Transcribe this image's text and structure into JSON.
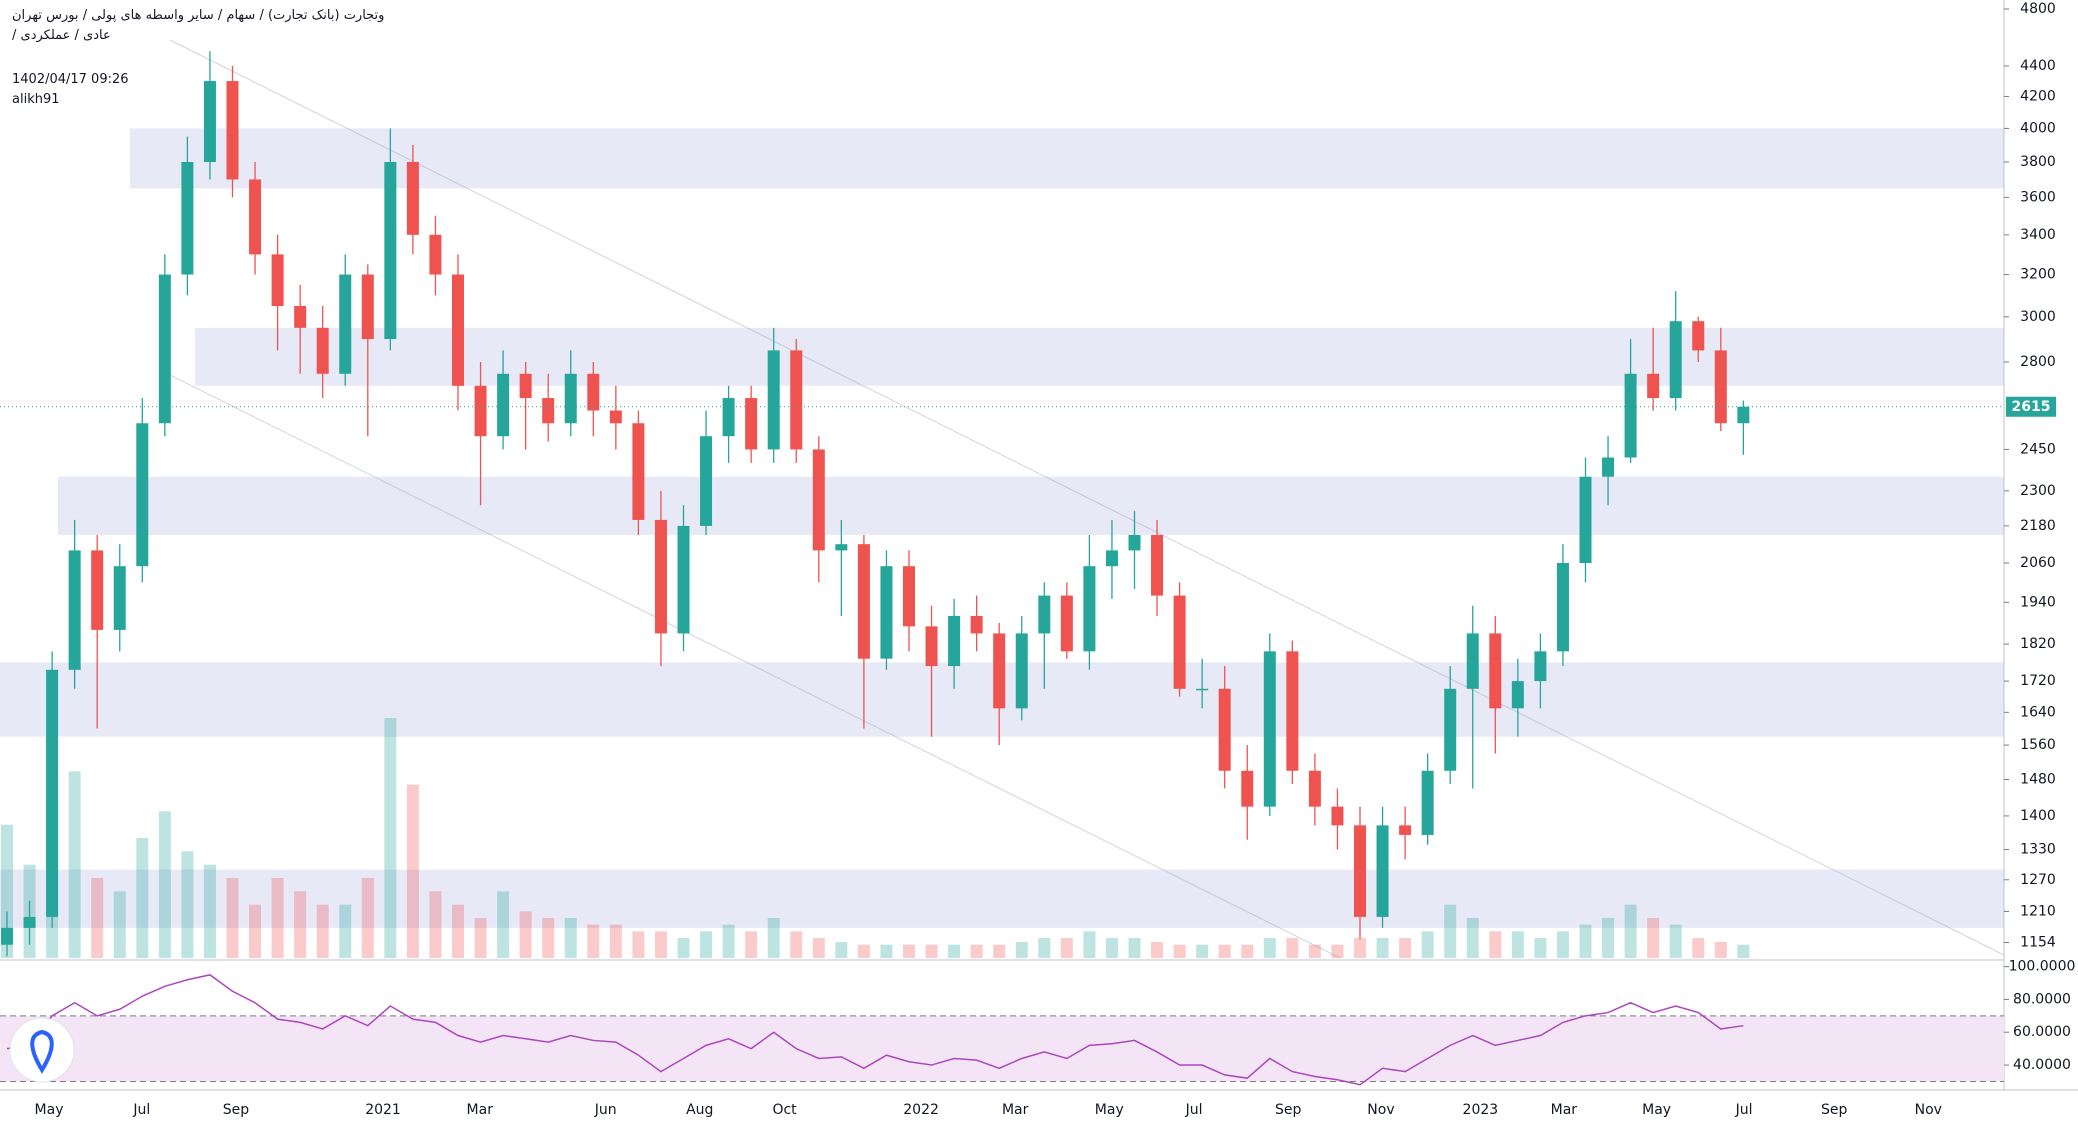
{
  "header": {
    "symbol": "وتجارت (بانک تجارت) / سهام / سایر واسطه های پولی / بورس تهران",
    "subline": "عادی / عملکردی /",
    "datetime": "1402/04/17 09:26",
    "author": "alikh91"
  },
  "chart_data": {
    "type": "candlestick",
    "log_scale": true,
    "ylim": [
      1127,
      4800
    ],
    "yticks": [
      1154,
      1210,
      1270,
      1330,
      1400,
      1480,
      1560,
      1640,
      1720,
      1820,
      1940,
      2060,
      2180,
      2300,
      2450,
      2800,
      3000,
      3200,
      3400,
      3600,
      3800,
      4000,
      4200,
      4400,
      4800
    ],
    "last_price": 2615,
    "last_price_color": "#26a69a",
    "up_color": "#26a69a",
    "down_color": "#ef5350",
    "open": [
      1150,
      1180,
      1200,
      1750,
      2100,
      1860,
      2050,
      2550,
      3200,
      3800,
      4300,
      3700,
      3300,
      3050,
      2950,
      2750,
      3200,
      2900,
      3800,
      3400,
      3200,
      2700,
      2500,
      2750,
      2650,
      2550,
      2750,
      2600,
      2550,
      2200,
      1850,
      2180,
      2500,
      2650,
      2450,
      2850,
      2450,
      2100,
      2120,
      1780,
      2050,
      1870,
      1760,
      1900,
      1850,
      1650,
      1850,
      1960,
      1800,
      2050,
      2100,
      2150,
      1960,
      1700,
      1700,
      1500,
      1420,
      1800,
      1500,
      1420,
      1380,
      1200,
      1380,
      1360,
      1500,
      1700,
      1850,
      1650,
      1720,
      1800,
      2060,
      2350,
      2420,
      2750,
      2650,
      2980,
      2850,
      2550
    ],
    "high": [
      1210,
      1230,
      1800,
      2200,
      2150,
      2120,
      2650,
      3300,
      3950,
      4500,
      4400,
      3800,
      3400,
      3150,
      3050,
      3300,
      3250,
      4000,
      3900,
      3500,
      3300,
      2800,
      2850,
      2800,
      2750,
      2850,
      2800,
      2700,
      2600,
      2300,
      2250,
      2600,
      2700,
      2700,
      2950,
      2900,
      2500,
      2200,
      2150,
      2100,
      2100,
      1930,
      1950,
      1960,
      1880,
      1900,
      2000,
      2000,
      2150,
      2200,
      2230,
      2200,
      2000,
      1780,
      1760,
      1560,
      1850,
      1830,
      1540,
      1460,
      1420,
      1420,
      1420,
      1540,
      1760,
      1930,
      1900,
      1780,
      1850,
      2120,
      2420,
      2500,
      2900,
      2950,
      3120,
      3000,
      2950,
      2640
    ],
    "low": [
      1130,
      1150,
      1180,
      1700,
      1600,
      1800,
      2000,
      2500,
      3100,
      3700,
      3600,
      3200,
      2850,
      2750,
      2650,
      2700,
      2500,
      2850,
      3300,
      3100,
      2600,
      2250,
      2450,
      2450,
      2480,
      2500,
      2500,
      2450,
      2150,
      1760,
      1800,
      2150,
      2400,
      2400,
      2400,
      2400,
      2000,
      1900,
      1600,
      1750,
      1800,
      1580,
      1700,
      1800,
      1560,
      1620,
      1700,
      1780,
      1750,
      1950,
      1980,
      1900,
      1680,
      1650,
      1460,
      1350,
      1400,
      1470,
      1380,
      1330,
      1160,
      1180,
      1310,
      1340,
      1470,
      1460,
      1540,
      1580,
      1650,
      1760,
      2000,
      2250,
      2400,
      2600,
      2600,
      2800,
      2520,
      2430
    ],
    "close": [
      1180,
      1200,
      1750,
      2100,
      1860,
      2050,
      2550,
      3200,
      3800,
      4300,
      3700,
      3300,
      3050,
      2950,
      2750,
      3200,
      2900,
      3800,
      3400,
      3200,
      2700,
      2500,
      2750,
      2650,
      2550,
      2750,
      2600,
      2550,
      2200,
      1850,
      2180,
      2500,
      2650,
      2450,
      2850,
      2450,
      2100,
      2120,
      1780,
      2050,
      1870,
      1760,
      1900,
      1850,
      1650,
      1850,
      1960,
      1800,
      2050,
      2100,
      2150,
      1960,
      1700,
      1700,
      1500,
      1420,
      1800,
      1500,
      1420,
      1380,
      1200,
      1380,
      1360,
      1500,
      1700,
      1850,
      1650,
      1720,
      1800,
      2060,
      2350,
      2420,
      2750,
      2650,
      2980,
      2850,
      2550,
      2615
    ],
    "volume": [
      100,
      70,
      120,
      140,
      60,
      50,
      90,
      110,
      80,
      70,
      60,
      40,
      60,
      50,
      40,
      40,
      60,
      180,
      130,
      50,
      40,
      30,
      50,
      35,
      30,
      30,
      25,
      25,
      20,
      20,
      15,
      20,
      25,
      20,
      30,
      20,
      15,
      12,
      10,
      10,
      10,
      10,
      10,
      10,
      10,
      12,
      15,
      15,
      20,
      15,
      15,
      12,
      10,
      10,
      10,
      10,
      15,
      15,
      10,
      10,
      15,
      15,
      15,
      20,
      40,
      30,
      20,
      20,
      15,
      20,
      25,
      30,
      40,
      30,
      25,
      15,
      12,
      10
    ],
    "zones": [
      [
        3650,
        4000
      ],
      [
        2700,
        2950
      ],
      [
        2150,
        2350
      ],
      [
        1580,
        1770
      ],
      [
        1180,
        1290
      ]
    ],
    "zone_color": "#9fa8da",
    "x_labels": [
      "May",
      "Jul",
      "Sep",
      "2021",
      "Mar",
      "Jun",
      "Aug",
      "Oct",
      "2022",
      "Mar",
      "May",
      "Jul",
      "Sep",
      "Nov",
      "2023",
      "Mar",
      "May",
      "Jul",
      "Sep",
      "Nov"
    ],
    "rsi": {
      "type": "line",
      "color": "#ab47bc",
      "ylim": [
        26,
        101
      ],
      "yticks": [
        {
          "value": 40,
          "label": "40.0000"
        },
        {
          "value": 60,
          "label": "60.0000"
        },
        {
          "value": 80,
          "label": "80.0000"
        },
        {
          "value": 100,
          "label": "100.0000"
        }
      ],
      "bands": [
        30,
        70
      ],
      "band_fill": "#f3e5f5",
      "values": [
        50,
        52,
        70,
        78,
        70,
        74,
        82,
        88,
        92,
        95,
        85,
        78,
        68,
        66,
        62,
        70,
        64,
        76,
        68,
        66,
        58,
        54,
        58,
        56,
        54,
        58,
        55,
        54,
        46,
        36,
        44,
        52,
        56,
        50,
        60,
        50,
        44,
        45,
        38,
        46,
        42,
        40,
        44,
        43,
        38,
        44,
        48,
        44,
        52,
        53,
        55,
        48,
        40,
        40,
        34,
        32,
        44,
        36,
        33,
        31,
        28,
        38,
        36,
        44,
        52,
        58,
        52,
        55,
        58,
        66,
        70,
        72,
        78,
        72,
        76,
        72,
        62,
        64
      ]
    }
  }
}
